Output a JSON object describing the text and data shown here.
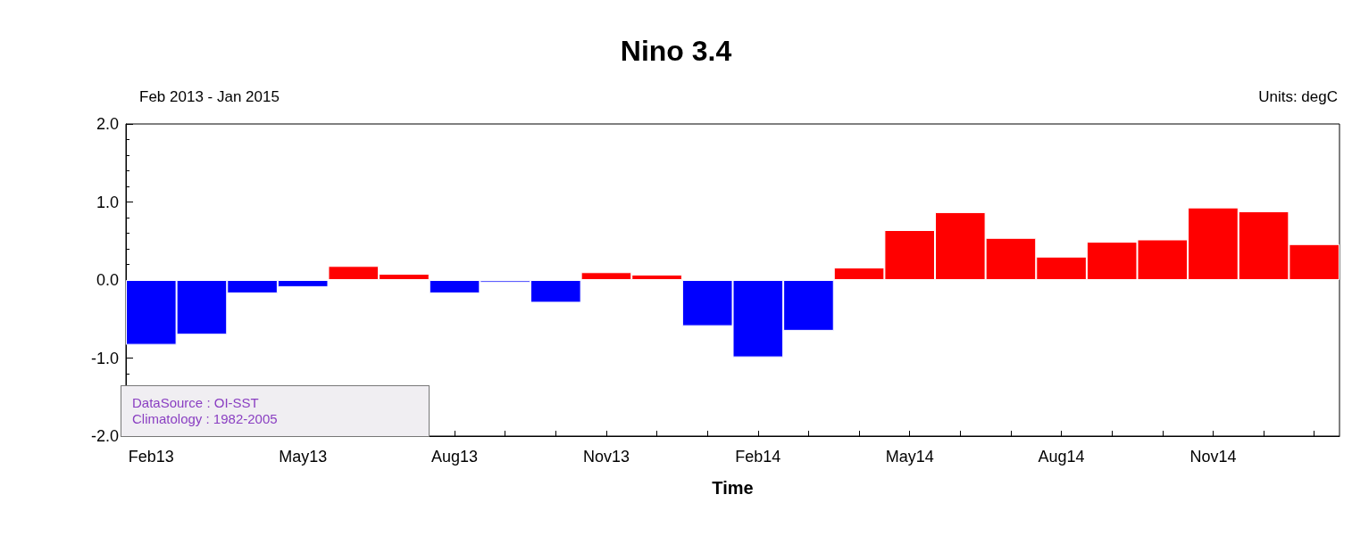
{
  "chart_data": {
    "type": "bar",
    "title": "Nino 3.4",
    "xlabel": "Time",
    "annotations": [
      "Feb 2013 - Jan 2015",
      "Units: degC",
      "DataSource : OI-SST",
      "Climatology : 1982-2005"
    ],
    "categories": [
      "Feb13",
      null,
      null,
      "May13",
      null,
      null,
      "Aug13",
      null,
      null,
      "Nov13",
      null,
      null,
      "Feb14",
      null,
      null,
      "May14",
      null,
      null,
      "Aug14",
      null,
      null,
      "Nov14",
      null,
      null
    ],
    "values": [
      -0.83,
      -0.7,
      -0.17,
      -0.09,
      0.18,
      0.08,
      -0.17,
      -0.03,
      -0.29,
      0.1,
      0.07,
      -0.59,
      -0.99,
      -0.65,
      0.16,
      0.64,
      0.87,
      0.54,
      0.3,
      0.49,
      0.52,
      0.93,
      0.88,
      0.46
    ],
    "colors": [
      "#0000ff",
      "#0000ff",
      "#0000ff",
      "#0000ff",
      "#ff0000",
      "#ff0000",
      "#0000ff",
      "#0000ff",
      "#0000ff",
      "#ff0000",
      "#ff0000",
      "#0000ff",
      "#0000ff",
      "#0000ff",
      "#ff0000",
      "#ff0000",
      "#ff0000",
      "#ff0000",
      "#ff0000",
      "#ff0000",
      "#ff0000",
      "#ff0000",
      "#ff0000",
      "#ff0000"
    ],
    "ylim": [
      -2,
      2
    ],
    "yticks": [
      {
        "value": -2,
        "label": "-2.0"
      },
      {
        "value": -1,
        "label": "-1.0"
      },
      {
        "value": 0,
        "label": "0.0"
      },
      {
        "value": 1,
        "label": "1.0"
      },
      {
        "value": 2,
        "label": "2.0"
      }
    ],
    "grid": false
  }
}
